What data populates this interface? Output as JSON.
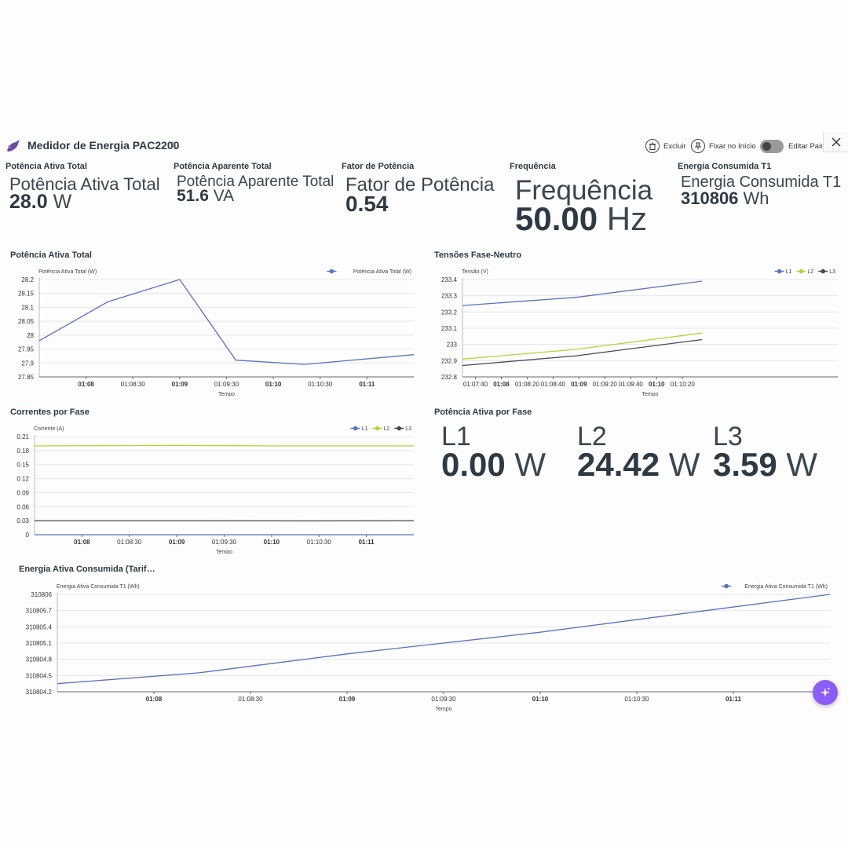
{
  "header": {
    "title": "Medidor de Energia PAC2200",
    "actions": {
      "delete_label": "Excluir",
      "pin_label": "Fixar no Início",
      "edit_label": "Editar Painel"
    }
  },
  "kpis": [
    {
      "title": "Potência Ativa Total",
      "label": "Potência Ativa Total",
      "value": "28.0",
      "unit": "W"
    },
    {
      "title": "Potência Aparente Total",
      "label": "Potência Aparente Total",
      "value": "51.6",
      "unit": "VA"
    },
    {
      "title": "Fator de Potência",
      "label": "Fator de Potência",
      "value": "0.54",
      "unit": ""
    },
    {
      "title": "Frequência",
      "label": "Frequência",
      "value": "50.00",
      "unit": "Hz"
    },
    {
      "title": "Energia Consumida T1",
      "label": "Energia Consumida T1",
      "value": "310806",
      "unit": "Wh"
    }
  ],
  "phase_power": {
    "title": "Potência Ativa por Fase",
    "items": [
      {
        "label": "L1",
        "value": "0.00",
        "unit": "W"
      },
      {
        "label": "L2",
        "value": "24.42",
        "unit": "W"
      },
      {
        "label": "L3",
        "value": "3.59",
        "unit": "W"
      }
    ]
  },
  "colors": {
    "L1": "#5b6fc4",
    "L2": "#b5d334",
    "L3": "#4a4558",
    "accent": "#8b5cf6"
  },
  "chart_data": [
    {
      "id": "active-power",
      "panel_title": "Potência Ativa Total",
      "type": "line",
      "ylabel": "Potência Ativa Total (W)",
      "xlabel": "Tempo",
      "ylim": [
        27.85,
        28.2
      ],
      "yticks": [
        "28.2",
        "28.15",
        "28.1",
        "28.05",
        "28",
        "27.95",
        "27.9",
        "27.85"
      ],
      "xlim": [
        0,
        240
      ],
      "xticks": [
        {
          "t": 30,
          "label": "01:08",
          "bold": true
        },
        {
          "t": 60,
          "label": "01:08:30",
          "bold": false
        },
        {
          "t": 90,
          "label": "01:09",
          "bold": true
        },
        {
          "t": 120,
          "label": "01:09:30",
          "bold": false
        },
        {
          "t": 150,
          "label": "01:10",
          "bold": true
        },
        {
          "t": 180,
          "label": "01:10:30",
          "bold": false
        },
        {
          "t": 210,
          "label": "01:11",
          "bold": true
        }
      ],
      "series": [
        {
          "name": "Potência Ativa Total (W)",
          "color": "#5b6fc4",
          "points": [
            [
              0,
              27.98
            ],
            [
              44,
              28.12
            ],
            [
              90,
              28.2
            ],
            [
              126,
              27.91
            ],
            [
              170,
              27.895
            ],
            [
              240,
              27.93
            ]
          ]
        }
      ]
    },
    {
      "id": "voltages",
      "panel_title": "Tensões Fase-Neutro",
      "type": "line",
      "ylabel": "Tensão (V)",
      "xlabel": "Tempo",
      "ylim": [
        232.8,
        233.4
      ],
      "yticks": [
        "233.4",
        "233.3",
        "233.2",
        "233.1",
        "233",
        "232.9",
        "232.8"
      ],
      "xlim": [
        0,
        290
      ],
      "xticks": [
        {
          "t": 10,
          "label": "01:07:40",
          "bold": false
        },
        {
          "t": 30,
          "label": "01:08",
          "bold": true
        },
        {
          "t": 50,
          "label": "01:08:20",
          "bold": false
        },
        {
          "t": 70,
          "label": "01:08:40",
          "bold": false
        },
        {
          "t": 90,
          "label": "01:09",
          "bold": true
        },
        {
          "t": 110,
          "label": "01:09:20",
          "bold": false
        },
        {
          "t": 130,
          "label": "01:09:40",
          "bold": false
        },
        {
          "t": 150,
          "label": "01:10",
          "bold": true
        },
        {
          "t": 170,
          "label": "01:10:20",
          "bold": false
        }
      ],
      "series": [
        {
          "name": "L1",
          "color": "#5b6fc4",
          "points": [
            [
              0,
              233.24
            ],
            [
              88,
              233.29
            ],
            [
              185,
              233.39
            ]
          ]
        },
        {
          "name": "L2",
          "color": "#b5d334",
          "points": [
            [
              0,
              232.91
            ],
            [
              88,
              232.97
            ],
            [
              185,
              233.07
            ]
          ]
        },
        {
          "name": "L3",
          "color": "#4a4558",
          "points": [
            [
              0,
              232.87
            ],
            [
              88,
              232.93
            ],
            [
              185,
              233.03
            ]
          ]
        }
      ]
    },
    {
      "id": "currents",
      "panel_title": "Correntes por Fase",
      "type": "line",
      "ylabel": "Corrente (A)",
      "xlabel": "Tempo",
      "ylim": [
        0,
        0.21
      ],
      "yticks": [
        "0.21",
        "0.18",
        "0.15",
        "0.12",
        "0.09",
        "0.06",
        "0.03",
        "0"
      ],
      "xlim": [
        0,
        240
      ],
      "xticks": [
        {
          "t": 30,
          "label": "01:08",
          "bold": true
        },
        {
          "t": 60,
          "label": "01:08:30",
          "bold": false
        },
        {
          "t": 90,
          "label": "01:09",
          "bold": true
        },
        {
          "t": 120,
          "label": "01:09:30",
          "bold": false
        },
        {
          "t": 150,
          "label": "01:10",
          "bold": true
        },
        {
          "t": 180,
          "label": "01:10:30",
          "bold": false
        },
        {
          "t": 210,
          "label": "01:11",
          "bold": true
        }
      ],
      "series": [
        {
          "name": "L1",
          "color": "#5b6fc4",
          "points": [
            [
              0,
              0.0
            ],
            [
              240,
              0.0
            ]
          ]
        },
        {
          "name": "L2",
          "color": "#b5d334",
          "points": [
            [
              0,
              0.19
            ],
            [
              90,
              0.191
            ],
            [
              150,
              0.19
            ],
            [
              240,
              0.19
            ]
          ]
        },
        {
          "name": "L3",
          "color": "#4a4558",
          "points": [
            [
              0,
              0.03
            ],
            [
              90,
              0.03
            ],
            [
              180,
              0.0295
            ],
            [
              240,
              0.03
            ]
          ]
        }
      ]
    },
    {
      "id": "energy",
      "panel_title": "Energia Ativa Consumida (Tarif…",
      "type": "line",
      "ylabel": "Energia Ativa Consumida T1 (Wh)",
      "xlabel": "Tempo",
      "ylim": [
        310804.2,
        310806
      ],
      "yticks": [
        "310806",
        "310805.7",
        "310805.4",
        "310805.1",
        "310804.8",
        "310804.5",
        "310804.2"
      ],
      "xlim": [
        0,
        240
      ],
      "xticks": [
        {
          "t": 30,
          "label": "01:08",
          "bold": true
        },
        {
          "t": 60,
          "label": "01:08:30",
          "bold": false
        },
        {
          "t": 90,
          "label": "01:09",
          "bold": true
        },
        {
          "t": 120,
          "label": "01:09:30",
          "bold": false
        },
        {
          "t": 150,
          "label": "01:10",
          "bold": true
        },
        {
          "t": 180,
          "label": "01:10:30",
          "bold": false
        },
        {
          "t": 210,
          "label": "01:11",
          "bold": true
        }
      ],
      "series": [
        {
          "name": "Energia Ativa Consumida T1 (Wh)",
          "color": "#5b6fc4",
          "points": [
            [
              0,
              310804.35
            ],
            [
              44,
              310804.55
            ],
            [
              90,
              310804.9
            ],
            [
              150,
              310805.3
            ],
            [
              240,
              310806.0
            ]
          ]
        }
      ]
    }
  ]
}
